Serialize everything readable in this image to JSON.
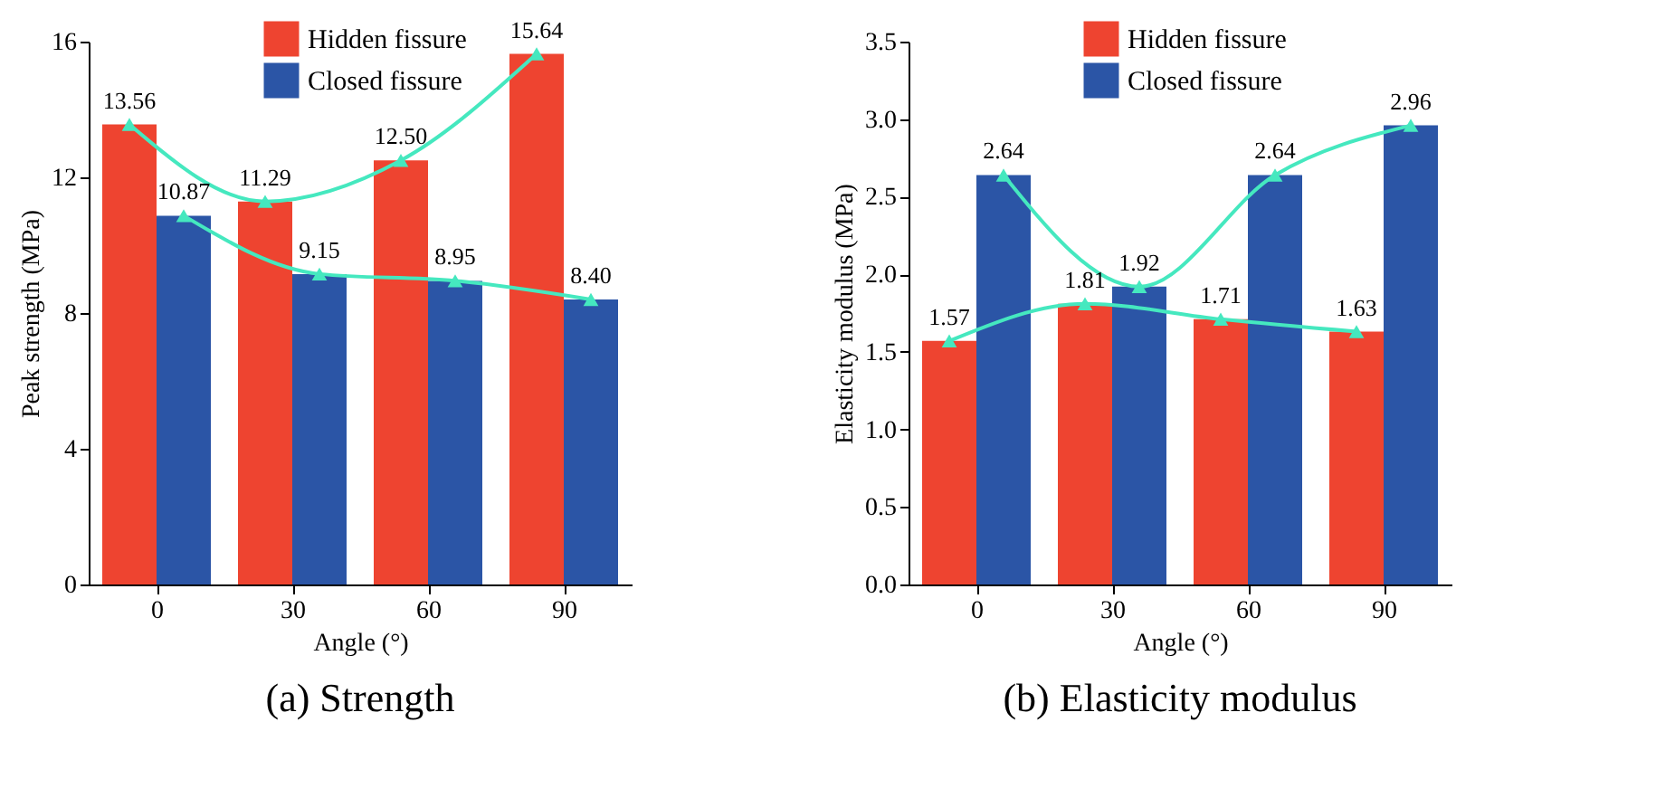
{
  "chart_data": [
    {
      "type": "bar",
      "title": "(a) Strength",
      "xlabel": "Angle (°)",
      "ylabel": "Peak strength (MPa)",
      "xlim": [
        -15,
        105
      ],
      "xticks": [
        0,
        30,
        60,
        90
      ],
      "ylim": [
        0,
        16
      ],
      "yticks": [
        0,
        4,
        8,
        12,
        16
      ],
      "legend": "top",
      "grid": false,
      "marker": "triangle",
      "series": [
        {
          "name": "Hidden fissure",
          "color": "#ee4430",
          "x": [
            -6,
            24,
            54,
            84
          ],
          "values": [
            13.56,
            11.29,
            12.5,
            15.64
          ],
          "value_labels": [
            "13.56",
            "11.29",
            "12.50",
            "15.64"
          ]
        },
        {
          "name": "Closed fissure",
          "color": "#2b55a6",
          "x": [
            6,
            36,
            66,
            96
          ],
          "values": [
            10.87,
            9.15,
            8.95,
            8.4
          ],
          "value_labels": [
            "10.87",
            "9.15",
            "8.95",
            "8.40"
          ]
        },
        {
          "type": "line",
          "color": "#45e8bf",
          "x": [
            -6,
            24,
            54,
            84
          ],
          "values": [
            13.56,
            11.29,
            12.5,
            15.64
          ]
        },
        {
          "type": "line",
          "color": "#45e8bf",
          "x": [
            6,
            36,
            66,
            96
          ],
          "values": [
            10.87,
            9.15,
            8.95,
            8.4
          ]
        }
      ]
    },
    {
      "type": "bar",
      "title": "(b) Elasticity modulus",
      "xlabel": "Angle (°)",
      "ylabel": "Elasticity modulus (MPa)",
      "xlim": [
        -15,
        105
      ],
      "xticks": [
        0,
        30,
        60,
        90
      ],
      "ylim": [
        0,
        3.5
      ],
      "yticks": [
        {
          "value": 0,
          "label": "0.0"
        },
        {
          "value": 0.5,
          "label": "0.5"
        },
        {
          "value": 1,
          "label": "1.0"
        },
        {
          "value": 1.5,
          "label": "1.5"
        },
        {
          "value": 2,
          "label": "2.0"
        },
        {
          "value": 2.5,
          "label": "2.5"
        },
        {
          "value": 3,
          "label": "3.0"
        },
        {
          "value": 3.5,
          "label": "3.5"
        }
      ],
      "legend": "top",
      "grid": false,
      "marker": "triangle",
      "series": [
        {
          "name": "Hidden fissure",
          "color": "#ee4430",
          "x": [
            -6,
            24,
            54,
            84
          ],
          "values": [
            1.57,
            1.81,
            1.71,
            1.63
          ],
          "value_labels": [
            "1.57",
            "1.81",
            "1.71",
            "1.63"
          ]
        },
        {
          "name": "Closed fissure",
          "color": "#2b55a6",
          "x": [
            6,
            36,
            66,
            96
          ],
          "values": [
            2.64,
            1.92,
            2.64,
            2.96
          ],
          "value_labels": [
            "2.64",
            "1.92",
            "2.64",
            "2.96"
          ]
        },
        {
          "type": "line",
          "color": "#45e8bf",
          "x": [
            -6,
            24,
            54,
            84
          ],
          "values": [
            1.57,
            1.81,
            1.71,
            1.63
          ]
        },
        {
          "type": "line",
          "color": "#45e8bf",
          "x": [
            6,
            36,
            66,
            96
          ],
          "values": [
            2.64,
            1.92,
            2.64,
            2.96
          ]
        }
      ]
    }
  ]
}
